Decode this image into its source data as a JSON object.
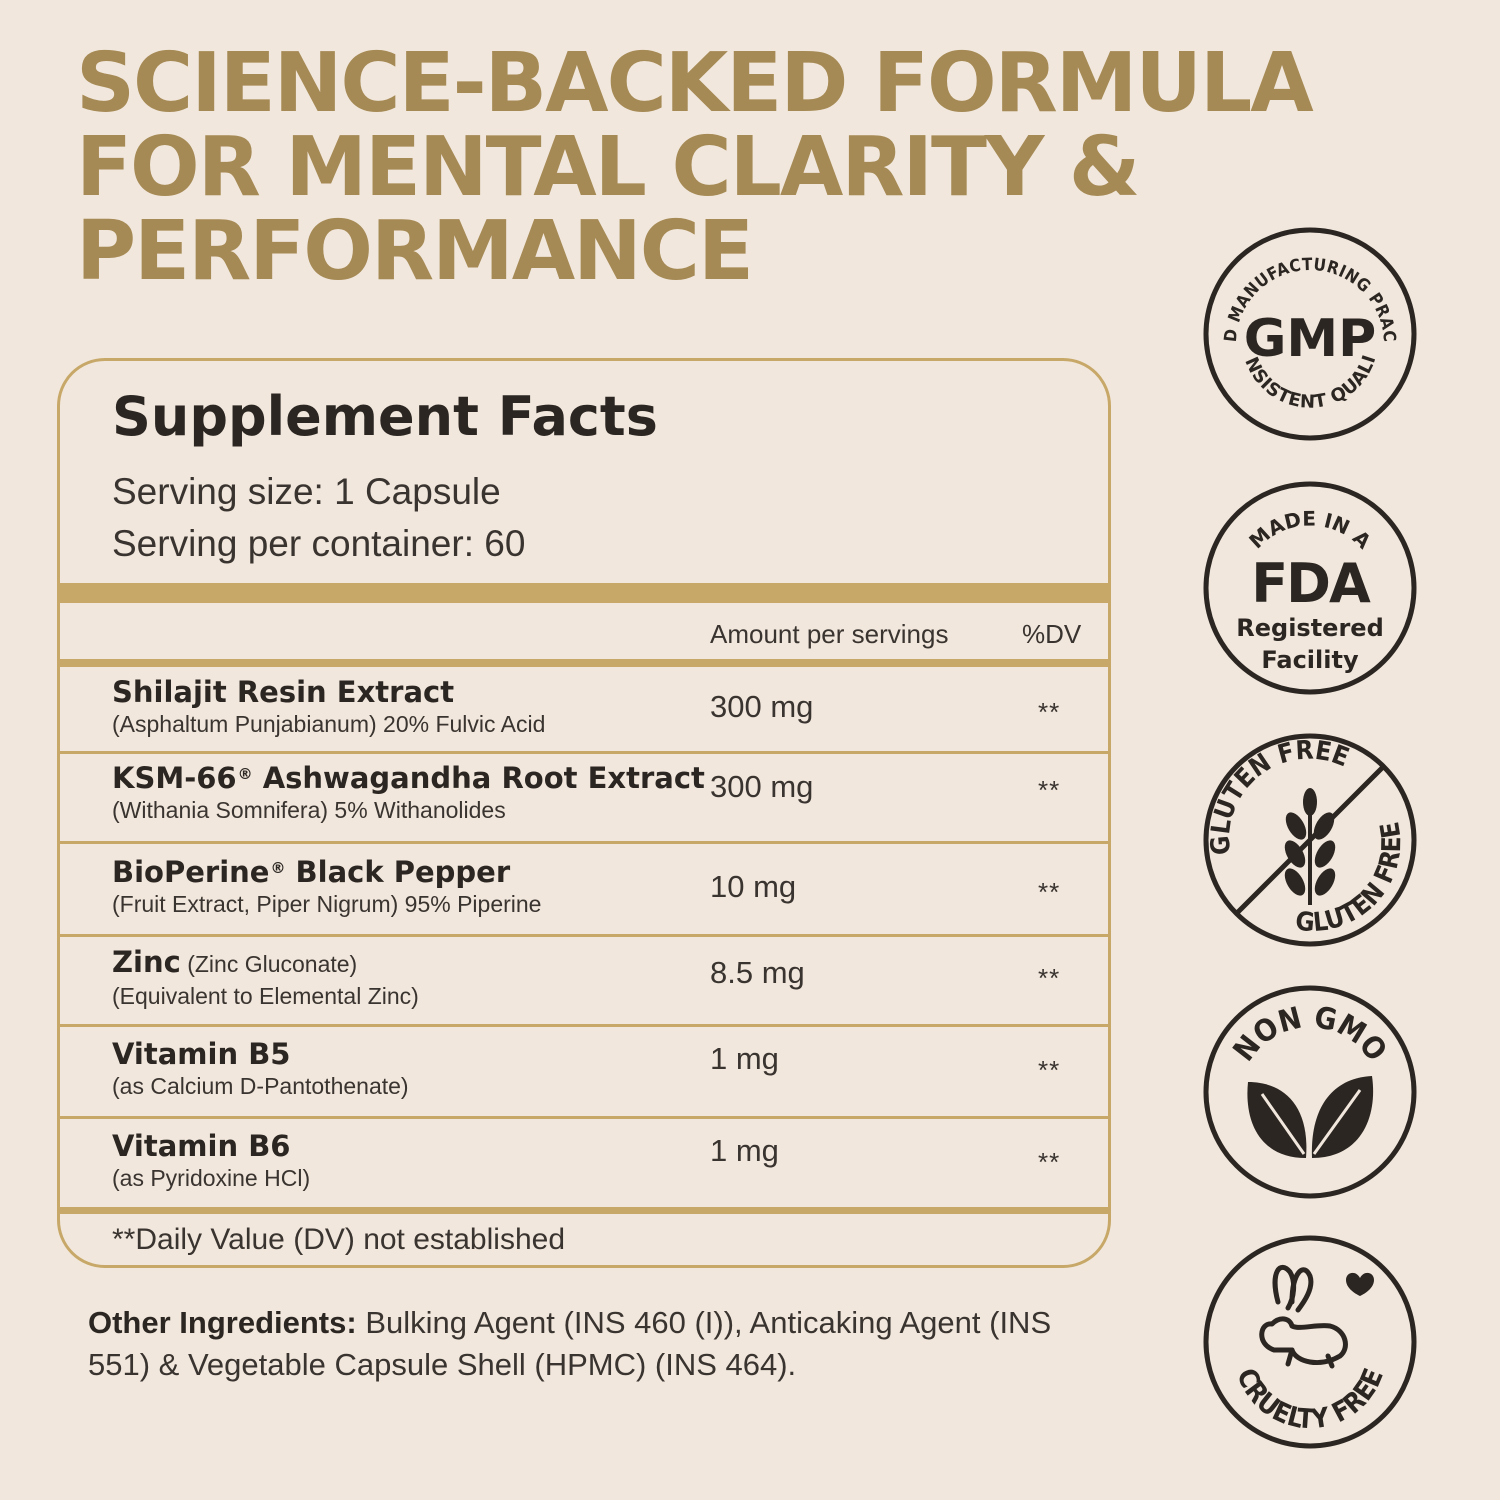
{
  "headline": {
    "line1": "SCIENCE-BACKED FORMULA",
    "line2": "FOR MENTAL CLARITY &",
    "line3": "PERFORMANCE"
  },
  "facts": {
    "title": "Supplement Facts",
    "serving_size": "Serving size: 1 Capsule",
    "servings_per_container": "Serving per container: 60",
    "col_amount": "Amount per servings",
    "col_dv": "%DV",
    "ingredients": [
      {
        "name": "Shilajit Resin Extract",
        "sub": "(Asphaltum Punjabianum) 20% Fulvic Acid",
        "amount": "300 mg",
        "dv": "**"
      },
      {
        "name": "KSM-66",
        "reg": "®",
        "name_rest": " Ashwagandha Root Extract",
        "sub": "(Withania Somnifera) 5% Withanolides",
        "amount": "300 mg",
        "dv": "**"
      },
      {
        "name": "BioPerine",
        "reg": "®",
        "name_rest": " Black Pepper",
        "sub": "(Fruit Extract, Piper Nigrum) 95% Piperine",
        "amount": "10 mg",
        "dv": "**"
      },
      {
        "name": "Zinc",
        "inline": " (Zinc Gluconate)",
        "sub": "(Equivalent to Elemental Zinc)",
        "amount": "8.5 mg",
        "dv": "**"
      },
      {
        "name": "Vitamin B5",
        "sub": "(as Calcium D-Pantothenate)",
        "amount": "1 mg",
        "dv": "**"
      },
      {
        "name": "Vitamin B6",
        "sub": "(as Pyridoxine HCl)",
        "amount": "1 mg",
        "dv": "**"
      }
    ],
    "dv_note": "**Daily Value (DV) not established"
  },
  "other_ingredients": {
    "label": "Other Ingredients:",
    "text": " Bulking Agent (INS 460 (I)), Anticaking Agent (INS 551) & Vegetable Capsule Shell (HPMC) (INS 464)."
  },
  "badges": {
    "gmp": {
      "top_text": "GOOD MANUFACTURING PRACTICE",
      "center": "GMP",
      "bottom_text": "CONSISTENT QUALITY"
    },
    "fda": {
      "top_text": "MADE IN A",
      "center": "FDA",
      "line1": "Registered",
      "line2": "Facility"
    },
    "gluten": {
      "top_text": "GLUTEN FREE",
      "bottom_text": "GLUTEN FREE"
    },
    "nongmo": {
      "top_text": "NON GMO"
    },
    "cruelty": {
      "bottom_text": "CRUELTY FREE"
    }
  },
  "colors": {
    "gold": "#a68a55",
    "border": "#c7a868",
    "background": "#f1e7dc",
    "ink": "#2b2622"
  }
}
